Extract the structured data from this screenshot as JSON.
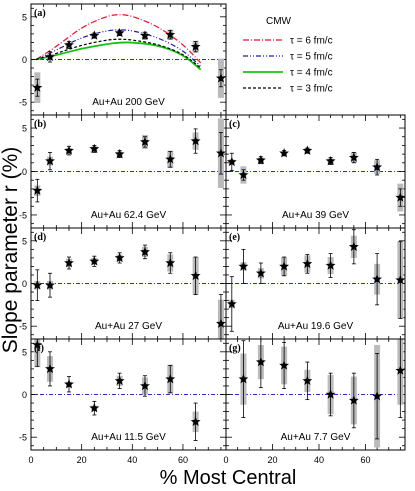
{
  "figure": {
    "ylabel": "Slope parameter r (%)",
    "xlabel": "% Most Central",
    "x_ticks": [
      "0",
      "20",
      "40",
      "60"
    ]
  },
  "legend": {
    "title": "CMW",
    "entries": [
      {
        "label": "τ = 6 fm/c",
        "color": "#e8102a",
        "style": "dashdot"
      },
      {
        "label": "τ = 5 fm/c",
        "color": "#1a1ab8",
        "style": "dashdotdot"
      },
      {
        "label": "τ = 4 fm/c",
        "color": "#12c412",
        "style": "solid"
      },
      {
        "label": "τ = 3 fm/c",
        "color": "#000000",
        "style": "dashed"
      }
    ]
  },
  "colors": {
    "zero_line": "#2a2ad0",
    "stat_error": "#000000",
    "sys_error": "#bbbbbb",
    "marker": "#000000"
  },
  "chart_data": [
    {
      "type": "scatter",
      "panel": "(a)",
      "label": "Au+Au 200 GeV",
      "xlim": [
        0,
        77
      ],
      "ylim": [
        -6.5,
        6.5
      ],
      "yticks": [
        "-5",
        "0",
        "5"
      ],
      "series": [
        {
          "x": [
            2.5,
            7.5,
            15,
            25,
            35,
            45,
            55,
            65,
            75
          ],
          "y": [
            -3.3,
            0.3,
            1.7,
            2.8,
            3.1,
            2.8,
            2.9,
            1.5,
            -2.2
          ],
          "stat": [
            1.0,
            0.6,
            0.4,
            0.3,
            0.3,
            0.4,
            0.5,
            0.6,
            1.0
          ],
          "sys": [
            1.8,
            0.4,
            0.3,
            0.3,
            0.3,
            0.4,
            0.6,
            0.7,
            2.3
          ]
        }
      ],
      "models": [
        {
          "name": "τ = 6 fm/c",
          "x": [
            2,
            10,
            20,
            30,
            35,
            40,
            50,
            60,
            67
          ],
          "y": [
            0,
            1.5,
            3.8,
            5.1,
            5.3,
            5.1,
            3.9,
            1.8,
            -0.4
          ]
        },
        {
          "name": "τ = 5 fm/c",
          "x": [
            2,
            10,
            20,
            30,
            35,
            40,
            50,
            60,
            67
          ],
          "y": [
            0,
            1.1,
            2.6,
            3.4,
            3.5,
            3.4,
            2.6,
            1.1,
            -0.8
          ]
        },
        {
          "name": "τ = 4 fm/c",
          "x": [
            2,
            10,
            20,
            30,
            35,
            40,
            50,
            60,
            67
          ],
          "y": [
            0,
            0.5,
            1.3,
            1.8,
            2.0,
            2.0,
            1.7,
            0.6,
            -1.2
          ]
        },
        {
          "name": "τ = 3 fm/c",
          "x": [
            2,
            10,
            20,
            30,
            35,
            40,
            50,
            60,
            67
          ],
          "y": [
            0,
            0.7,
            1.7,
            2.3,
            2.4,
            2.3,
            1.8,
            0.7,
            -1.0
          ]
        }
      ]
    },
    {
      "type": "scatter",
      "panel": "(b)",
      "label": "Au+Au 62.4 GeV",
      "xlim": [
        0,
        77
      ],
      "ylim": [
        -6.5,
        6.5
      ],
      "yticks": [
        "-5",
        "0",
        "5"
      ],
      "series": [
        {
          "x": [
            2.5,
            7.5,
            15,
            25,
            35,
            45,
            55,
            65,
            75
          ],
          "y": [
            -2.2,
            1.2,
            2.4,
            2.6,
            2.0,
            3.4,
            1.4,
            3.5,
            2.1
          ],
          "stat": [
            1.3,
            1.0,
            0.5,
            0.4,
            0.4,
            0.6,
            0.9,
            1.4,
            2.4
          ],
          "sys": [
            0.6,
            0.5,
            0.3,
            0.3,
            0.3,
            0.8,
            1.0,
            1.0,
            4.0
          ]
        }
      ]
    },
    {
      "type": "scatter",
      "panel": "(c)",
      "label": "Au+Au 39 GeV",
      "xlim": [
        0,
        77
      ],
      "ylim": [
        -6.5,
        6.5
      ],
      "yticks": [
        "-5",
        "0",
        "5"
      ],
      "series": [
        {
          "x": [
            2.5,
            7.5,
            15,
            25,
            35,
            45,
            55,
            65,
            75
          ],
          "y": [
            1.1,
            -0.4,
            1.3,
            2.1,
            2.4,
            1.2,
            1.6,
            0.5,
            -3.0
          ]
        },
        {
          "x": [],
          "y": []
        }
      ],
      "stat_values": [
        1.0,
        0.6,
        0.4,
        0.3,
        0.3,
        0.4,
        0.6,
        0.9,
        1.0
      ],
      "sys_values": [
        0.3,
        1.0,
        0.3,
        0.2,
        0.3,
        0.3,
        0.6,
        0.8,
        1.6
      ]
    },
    {
      "type": "scatter",
      "panel": "(d)",
      "label": "Au+Au 27 GeV",
      "xlim": [
        0,
        77
      ],
      "ylim": [
        -6.5,
        6.5
      ],
      "yticks": [
        "-5",
        "0",
        "5"
      ],
      "series": [
        {
          "x": [
            2.5,
            7.5,
            15,
            25,
            35,
            45,
            55,
            65,
            75
          ],
          "y": [
            -0.2,
            -0.2,
            2.4,
            2.6,
            3.0,
            3.7,
            2.4,
            0.9,
            -4.7
          ],
          "stat": [
            1.8,
            1.4,
            0.7,
            0.6,
            0.6,
            0.8,
            1.2,
            2.2,
            3.4
          ],
          "sys": [
            0.5,
            0.5,
            0.5,
            0.4,
            0.4,
            0.6,
            1.0,
            2.2,
            2.8
          ]
        }
      ]
    },
    {
      "type": "scatter",
      "panel": "(e)",
      "label": "Au+Au 19.6 GeV",
      "xlim": [
        0,
        77
      ],
      "ylim": [
        -6.5,
        6.5
      ],
      "yticks": [
        "-5",
        "0",
        "5"
      ],
      "series": [
        {
          "x": [
            2.5,
            7.5,
            15,
            25,
            35,
            45,
            55,
            65,
            75
          ],
          "y": [
            -2.4,
            2.0,
            1.2,
            2.0,
            2.3,
            2.1,
            4.3,
            0.5,
            0.4
          ],
          "stat": [
            3.2,
            2.0,
            1.2,
            1.1,
            1.1,
            1.4,
            2.0,
            3.0,
            4.5
          ],
          "sys": [
            0.5,
            0.5,
            0.6,
            1.1,
            1.0,
            1.0,
            1.3,
            1.8,
            4.5
          ]
        }
      ]
    },
    {
      "type": "scatter",
      "panel": "(f)",
      "label": "Au+Au 11.5 GeV",
      "xlim": [
        0,
        77
      ],
      "ylim": [
        -6.5,
        6.5
      ],
      "yticks": [
        "-5",
        "0",
        "5"
      ],
      "series": [
        {
          "x": [
            2.5,
            7.5,
            15,
            25,
            35,
            45,
            55,
            65,
            75
          ],
          "y": [
            5.8,
            3.0,
            1.2,
            -1.6,
            1.6,
            1.0,
            1.8,
            -3.2,
            0
          ],
          "stat": [
            2.5,
            2.0,
            0.9,
            0.8,
            0.9,
            1.2,
            1.6,
            2.2,
            0
          ],
          "sys": [
            2.6,
            1.5,
            0.3,
            0.3,
            0.6,
            1.0,
            1.7,
            1.2,
            0
          ]
        }
      ]
    },
    {
      "type": "scatter",
      "panel": "(g)",
      "label": "Au+Au 7.7 GeV",
      "xlim": [
        0,
        77
      ],
      "ylim": [
        -6.5,
        6.5
      ],
      "yticks": [
        "-5",
        "0",
        "5"
      ],
      "series": [
        {
          "x": [
            7.5,
            15,
            25,
            35,
            45,
            55,
            65,
            75
          ],
          "y": [
            1.8,
            3.8,
            3.4,
            1.6,
            0.0,
            -0.7,
            -0.2,
            2.8
          ],
          "stat": [
            4.5,
            3.0,
            2.7,
            2.2,
            2.5,
            3.2,
            5.0,
            5.5
          ],
          "sys": [
            3.0,
            2.0,
            2.2,
            1.3,
            2.3,
            2.8,
            6.0,
            4.0
          ]
        }
      ]
    }
  ]
}
